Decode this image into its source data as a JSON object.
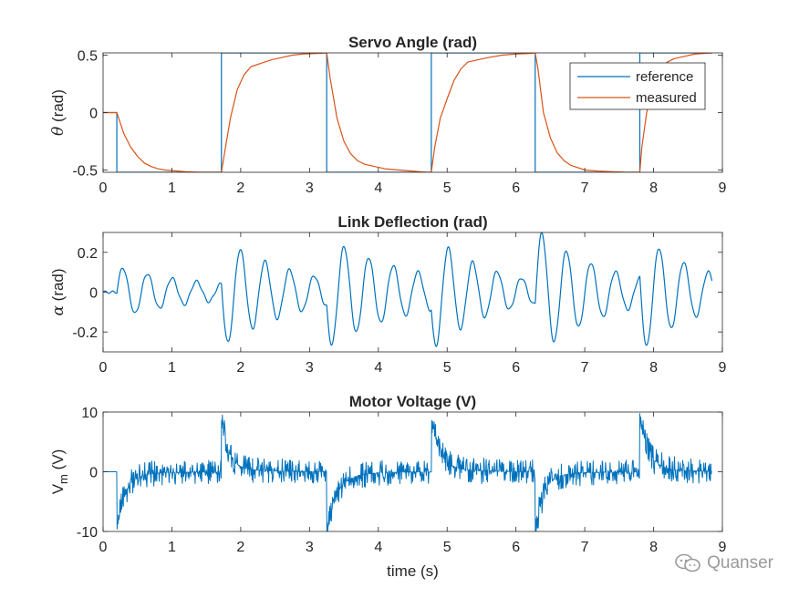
{
  "figure": {
    "xlabel": "time (s)",
    "watermark": "Quanser",
    "colors": {
      "blue": "#0072BD",
      "orange": "#D95319",
      "axis": "#262626",
      "grid_ticks": "#262626"
    }
  },
  "chart_data": [
    {
      "type": "line",
      "title": "Servo Angle (rad)",
      "ylabel": "θ (rad)",
      "xlim": [
        0,
        9
      ],
      "ylim": [
        -0.52,
        0.52
      ],
      "xticks": [
        0,
        1,
        2,
        3,
        4,
        5,
        6,
        7,
        8,
        9
      ],
      "yticks": [
        -0.5,
        0,
        0.5
      ],
      "ytick_labels": [
        "-0.5",
        "0",
        "0.5"
      ],
      "legend_position": "top-right",
      "series": [
        {
          "name": "reference",
          "color": "#0072BD",
          "step_times": [
            0.2,
            1.72,
            3.25,
            4.77,
            6.28,
            7.8
          ],
          "levels": [
            0,
            -0.52,
            0.52,
            -0.52,
            0.52,
            -0.52,
            0.52
          ],
          "x_end": 8.85
        },
        {
          "name": "measured",
          "color": "#D95319",
          "x": [
            0,
            0.2,
            0.3,
            0.4,
            0.5,
            0.6,
            0.7,
            0.8,
            0.9,
            1.0,
            1.2,
            1.4,
            1.6,
            1.72,
            1.78,
            1.85,
            1.95,
            2.05,
            2.15,
            2.3,
            2.45,
            2.6,
            2.75,
            2.9,
            3.1,
            3.25,
            3.3,
            3.4,
            3.5,
            3.6,
            3.7,
            3.8,
            3.95,
            4.1,
            4.3,
            4.5,
            4.7,
            4.77,
            4.82,
            4.9,
            5.0,
            5.1,
            5.2,
            5.3,
            5.45,
            5.6,
            5.8,
            6.0,
            6.2,
            6.28,
            6.32,
            6.4,
            6.5,
            6.6,
            6.7,
            6.8,
            6.9,
            7.0,
            7.2,
            7.4,
            7.6,
            7.8,
            7.83,
            7.9,
            8.0,
            8.1,
            8.2,
            8.3,
            8.45,
            8.6,
            8.85
          ],
          "y": [
            0,
            0,
            -0.18,
            -0.3,
            -0.38,
            -0.44,
            -0.47,
            -0.49,
            -0.5,
            -0.505,
            -0.515,
            -0.52,
            -0.52,
            -0.52,
            -0.3,
            -0.05,
            0.2,
            0.33,
            0.4,
            0.43,
            0.46,
            0.48,
            0.5,
            0.51,
            0.515,
            0.52,
            0.3,
            -0.05,
            -0.25,
            -0.36,
            -0.42,
            -0.45,
            -0.47,
            -0.49,
            -0.5,
            -0.51,
            -0.52,
            -0.52,
            -0.3,
            -0.05,
            0.12,
            0.28,
            0.38,
            0.44,
            0.46,
            0.48,
            0.5,
            0.51,
            0.515,
            0.52,
            0.38,
            0.0,
            -0.22,
            -0.35,
            -0.42,
            -0.46,
            -0.48,
            -0.5,
            -0.51,
            -0.515,
            -0.52,
            -0.52,
            -0.3,
            0.0,
            0.25,
            0.38,
            0.44,
            0.47,
            0.49,
            0.51,
            0.52
          ]
        }
      ]
    },
    {
      "type": "line",
      "title": "Link Deflection (rad)",
      "ylabel": "α (rad)",
      "xlim": [
        0,
        9
      ],
      "ylim": [
        -0.3,
        0.3
      ],
      "xticks": [
        0,
        1,
        2,
        3,
        4,
        5,
        6,
        7,
        8,
        9
      ],
      "yticks": [
        -0.2,
        0,
        0.2
      ],
      "ytick_labels": [
        "-0.2",
        "0",
        "0.2"
      ],
      "series": [
        {
          "name": "",
          "color": "#0072BD",
          "oscillation": {
            "frequency_hz": 2.8,
            "x_end": 8.85,
            "events": [
              {
                "t": 0.2,
                "sign": 1,
                "amplitude": 0.13,
                "decay": 0.75
              },
              {
                "t": 1.72,
                "sign": -1,
                "amplitude": 0.27,
                "decay": 0.9
              },
              {
                "t": 3.25,
                "sign": -1,
                "amplitude": 0.27,
                "decay": 0.75
              },
              {
                "t": 4.77,
                "sign": -1,
                "amplitude": 0.3,
                "decay": 1.1
              },
              {
                "t": 6.28,
                "sign": 1,
                "amplitude": 0.3,
                "decay": 1.0
              },
              {
                "t": 7.8,
                "sign": -1,
                "amplitude": 0.3,
                "decay": 1.1
              }
            ]
          }
        }
      ]
    },
    {
      "type": "line",
      "title": "Motor Voltage (V)",
      "ylabel": "V_m (V)",
      "xlabel": "time (s)",
      "xlim": [
        0,
        9
      ],
      "ylim": [
        -10,
        10
      ],
      "xticks": [
        0,
        1,
        2,
        3,
        4,
        5,
        6,
        7,
        8,
        9
      ],
      "yticks": [
        -10,
        0,
        10
      ],
      "ytick_labels": [
        "-10",
        "0",
        "10"
      ],
      "series": [
        {
          "name": "",
          "color": "#0072BD",
          "noise": {
            "x_end": 8.85,
            "chatter_amplitude": 2.2,
            "events": [
              {
                "t": 0.2,
                "peak": -10,
                "decay": 0.12
              },
              {
                "t": 1.72,
                "peak": 10,
                "decay": 0.1
              },
              {
                "t": 3.25,
                "peak": -10,
                "decay": 0.15
              },
              {
                "t": 4.77,
                "peak": 10,
                "decay": 0.12
              },
              {
                "t": 6.28,
                "peak": -10,
                "decay": 0.12
              },
              {
                "t": 7.8,
                "peak": 10,
                "decay": 0.12
              }
            ]
          }
        }
      ]
    }
  ]
}
